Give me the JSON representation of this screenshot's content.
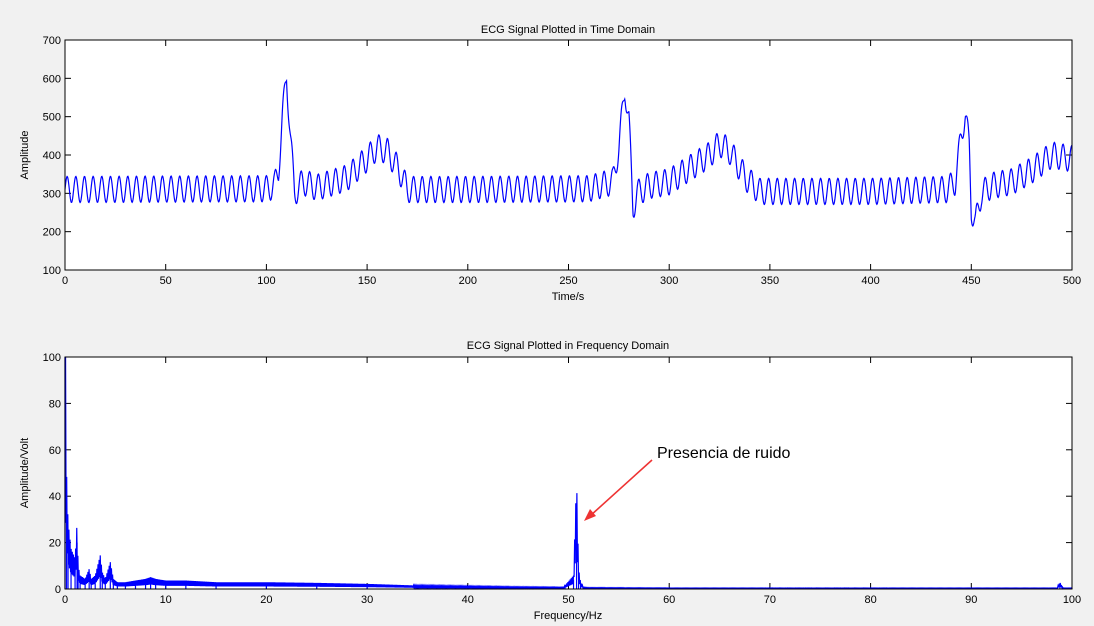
{
  "colors": {
    "figure_bg": "#f1f1f1",
    "axes_bg": "#ffffff",
    "signal": "#0000ff",
    "annotation_arrow": "#ee3333"
  },
  "chart_data": [
    {
      "type": "line",
      "title": "ECG Signal Plotted in Time Domain",
      "xlabel": "Time/s",
      "ylabel": "Amplitude",
      "xlim": [
        0,
        500
      ],
      "ylim": [
        100,
        700
      ],
      "xticks": [
        0,
        50,
        100,
        150,
        200,
        250,
        300,
        350,
        400,
        450,
        500
      ],
      "yticks": [
        100,
        200,
        300,
        400,
        500,
        600,
        700
      ],
      "grid": false,
      "series": [
        {
          "color": "#0000ff",
          "oscillation": {
            "period": 4.3,
            "amplitude": 34
          },
          "x": [
            0,
            100,
            104,
            106,
            108,
            110,
            112,
            114,
            118,
            125,
            140,
            150,
            155,
            160,
            166,
            170,
            200,
            260,
            272,
            275,
            278,
            280,
            282,
            284,
            290,
            300,
            320,
            325,
            330,
            338,
            345,
            400,
            438,
            442,
            445,
            447,
            449,
            450,
            452,
            455,
            460,
            470,
            480,
            490,
            500
          ],
          "y": [
            310,
            312,
            320,
            360,
            500,
            610,
            440,
            300,
            330,
            315,
            340,
            390,
            420,
            410,
            360,
            310,
            310,
            312,
            330,
            420,
            575,
            490,
            260,
            300,
            320,
            330,
            400,
            430,
            410,
            340,
            305,
            305,
            310,
            330,
            450,
            510,
            420,
            260,
            220,
            300,
            320,
            330,
            360,
            400,
            390
          ]
        }
      ]
    },
    {
      "type": "line",
      "title": "ECG Signal Plotted in Frequency Domain",
      "xlabel": "Frequency/Hz",
      "ylabel": "Amplitude/Volt",
      "xlim": [
        0,
        100
      ],
      "ylim": [
        0,
        100
      ],
      "xticks": [
        0,
        10,
        20,
        30,
        40,
        50,
        60,
        70,
        80,
        90,
        100
      ],
      "yticks": [
        0,
        20,
        40,
        60,
        80,
        100
      ],
      "grid": false,
      "series": [
        {
          "color": "#0000ff",
          "x": [
            0,
            0.15,
            0.3,
            0.6,
            1.0,
            1.2,
            1.3,
            1.5,
            2.0,
            2.4,
            2.6,
            3.0,
            3.5,
            3.7,
            4.0,
            4.5,
            4.8,
            5.2,
            6.0,
            7.0,
            8.0,
            8.5,
            9.0,
            10.0,
            12.0,
            15.0,
            20.0,
            25.0,
            30.0,
            35.0,
            40.0,
            45.0,
            49.5,
            50.5,
            50.8,
            51.0,
            51.2,
            51.5,
            52.0,
            60.0,
            70.0,
            80.0,
            90.0,
            98.5,
            98.8,
            99.1,
            100.0
          ],
          "y": [
            100,
            35,
            20,
            12,
            9,
            20,
            7,
            4,
            3,
            6,
            3,
            4,
            10,
            5,
            3,
            8,
            3,
            2,
            2,
            2.5,
            3,
            3.5,
            3,
            2.5,
            2.5,
            2,
            2,
            1.8,
            1.5,
            1,
            0.8,
            0.6,
            0.5,
            4,
            33,
            6,
            2,
            0.5,
            0.4,
            0.3,
            0.3,
            0.3,
            0.3,
            0.3,
            2,
            0.3,
            0.3
          ]
        }
      ],
      "annotation": {
        "text": "Presencia de ruido",
        "points_to": [
          51,
          30
        ]
      }
    }
  ]
}
